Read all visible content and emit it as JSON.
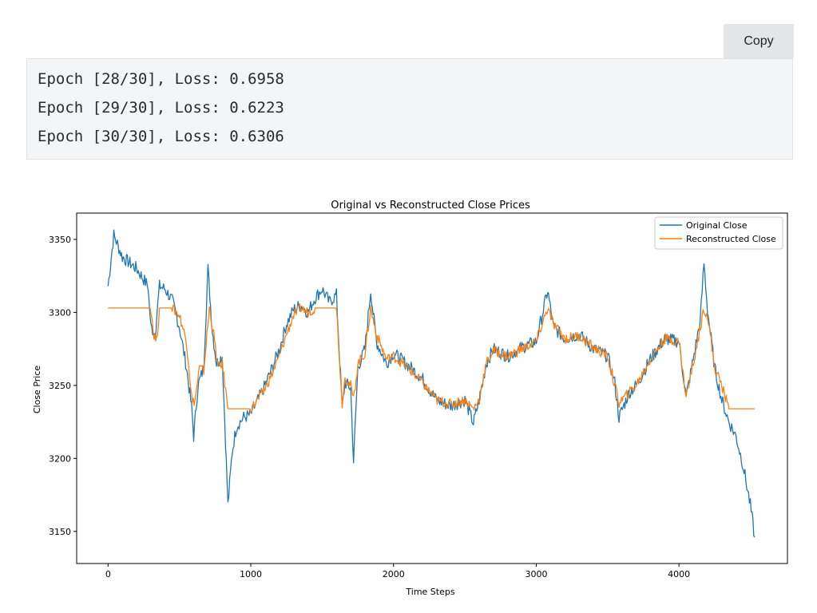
{
  "toolbar": {
    "copy_label": "Copy"
  },
  "code_output": {
    "lines": [
      "Epoch [28/30], Loss: 0.6958",
      "Epoch [29/30], Loss: 0.6223",
      "Epoch [30/30], Loss: 0.6306"
    ]
  },
  "chart_data": {
    "type": "line",
    "title": "Original vs Reconstructed Close Prices",
    "xlabel": "Time Steps",
    "ylabel": "Close Price",
    "xlim": [
      -220,
      4760
    ],
    "ylim": [
      3128,
      3368
    ],
    "xticks": [
      0,
      1000,
      2000,
      3000,
      4000
    ],
    "yticks": [
      3150,
      3200,
      3250,
      3300,
      3350
    ],
    "grid": false,
    "legend_position": "top-right",
    "series": [
      {
        "name": "Original Close",
        "color": "#1f77b4",
        "x": [
          0,
          40,
          100,
          200,
          280,
          300,
          330,
          360,
          400,
          450,
          500,
          550,
          585,
          600,
          630,
          670,
          700,
          730,
          760,
          800,
          840,
          870,
          900,
          950,
          1000,
          1050,
          1100,
          1150,
          1200,
          1250,
          1300,
          1350,
          1400,
          1450,
          1500,
          1550,
          1600,
          1640,
          1660,
          1700,
          1720,
          1750,
          1800,
          1840,
          1880,
          1950,
          2000,
          2100,
          2200,
          2300,
          2400,
          2500,
          2560,
          2600,
          2650,
          2700,
          2800,
          2900,
          3000,
          3080,
          3120,
          3200,
          3300,
          3400,
          3500,
          3550,
          3580,
          3650,
          3700,
          3800,
          3900,
          4000,
          4050,
          4100,
          4150,
          4175,
          4200,
          4250,
          4300,
          4350,
          4400,
          4450,
          4500,
          4530
        ],
        "values": [
          3318,
          3353,
          3338,
          3330,
          3318,
          3290,
          3285,
          3318,
          3316,
          3308,
          3290,
          3262,
          3235,
          3215,
          3250,
          3262,
          3330,
          3288,
          3265,
          3270,
          3168,
          3205,
          3222,
          3228,
          3230,
          3240,
          3250,
          3262,
          3275,
          3292,
          3302,
          3305,
          3300,
          3310,
          3316,
          3307,
          3312,
          3235,
          3252,
          3248,
          3198,
          3262,
          3275,
          3315,
          3280,
          3265,
          3272,
          3264,
          3255,
          3240,
          3236,
          3240,
          3224,
          3240,
          3265,
          3275,
          3270,
          3276,
          3280,
          3315,
          3290,
          3282,
          3285,
          3275,
          3270,
          3252,
          3228,
          3245,
          3250,
          3268,
          3282,
          3280,
          3242,
          3268,
          3295,
          3334,
          3302,
          3262,
          3240,
          3225,
          3215,
          3195,
          3168,
          3146
        ]
      },
      {
        "name": "Reconstructed Close",
        "color": "#ff7f0e",
        "x": [
          0,
          100,
          200,
          300,
          320,
          340,
          360,
          400,
          450,
          500,
          550,
          590,
          610,
          640,
          670,
          710,
          740,
          770,
          800,
          840,
          900,
          950,
          1000,
          1050,
          1100,
          1150,
          1200,
          1250,
          1300,
          1350,
          1400,
          1450,
          1500,
          1550,
          1600,
          1640,
          1660,
          1700,
          1720,
          1750,
          1800,
          1840,
          1880,
          1950,
          2000,
          2100,
          2200,
          2300,
          2400,
          2500,
          2560,
          2600,
          2650,
          2700,
          2800,
          2900,
          3000,
          3080,
          3120,
          3200,
          3300,
          3400,
          3500,
          3550,
          3580,
          3650,
          3700,
          3800,
          3900,
          4000,
          4050,
          4100,
          4150,
          4175,
          4200,
          4250,
          4300,
          4350,
          4400,
          4450,
          4500,
          4530
        ],
        "values": [
          3303,
          3303,
          3303,
          3303,
          3285,
          3280,
          3303,
          3303,
          3303,
          3298,
          3280,
          3238,
          3240,
          3262,
          3260,
          3303,
          3285,
          3262,
          3265,
          3234,
          3234,
          3234,
          3234,
          3240,
          3248,
          3258,
          3270,
          3285,
          3298,
          3303,
          3300,
          3303,
          3303,
          3303,
          3303,
          3238,
          3255,
          3250,
          3240,
          3265,
          3272,
          3303,
          3285,
          3268,
          3270,
          3262,
          3252,
          3240,
          3237,
          3240,
          3234,
          3240,
          3265,
          3274,
          3270,
          3275,
          3280,
          3303,
          3292,
          3282,
          3284,
          3276,
          3270,
          3250,
          3238,
          3245,
          3250,
          3268,
          3282,
          3280,
          3242,
          3265,
          3290,
          3303,
          3298,
          3262,
          3250,
          3234,
          3234,
          3234,
          3234,
          3234
        ]
      }
    ]
  }
}
